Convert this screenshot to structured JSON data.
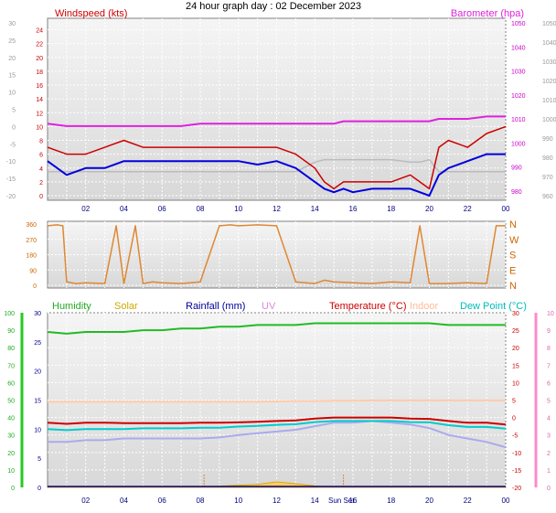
{
  "title": "24 hour graph day : 02 December 2023",
  "xticks": [
    "02",
    "04",
    "06",
    "08",
    "10",
    "12",
    "14",
    "16",
    "18",
    "20",
    "22",
    "00"
  ],
  "sunset_label": "Sun Set",
  "colors": {
    "wind": "#cc0000",
    "windAvg": "#0000dd",
    "baro": "#dd22dd",
    "indoorBaro": "#bbbbbb",
    "dir": "#dd8833",
    "humidity": "#22bb22",
    "solar": "#ddaa00",
    "rain": "#000099",
    "uv": "#dd88dd",
    "temp": "#cc0000",
    "indoor": "#ffccaa",
    "dew": "#00cccc",
    "apparent": "#aaaaee"
  },
  "chart_data": [
    {
      "type": "line",
      "id": "wind-pressure",
      "ylabel": "Windspeed (kts)",
      "y2label": "Barometer (hpa)",
      "ylim": [
        0,
        25
      ],
      "yticks": [
        0,
        2,
        4,
        6,
        8,
        10,
        12,
        14,
        16,
        18,
        20,
        22,
        24
      ],
      "yticks_gray": [
        -20,
        -15,
        -10,
        -5,
        0,
        5,
        10,
        15,
        20,
        25,
        30
      ],
      "y2lim": [
        978,
        1050
      ],
      "y2ticks": [
        980,
        990,
        1000,
        1010,
        1020,
        1030,
        1040,
        1050
      ],
      "y2ticks_minor": [
        960,
        970,
        980,
        990,
        1000,
        1010,
        1020,
        1030,
        1040,
        1050
      ],
      "x_hours": [
        0.0,
        1.0,
        2.0,
        3.0,
        4.0,
        5.0,
        6.0,
        7.0,
        8.0,
        9.0,
        10.0,
        11.0,
        12.0,
        13.0,
        14.0,
        14.5,
        15.0,
        15.5,
        16.0,
        17.0,
        18.0,
        19.0,
        19.5,
        20.0,
        20.5,
        21.0,
        22.0,
        23.0,
        24.0
      ],
      "series": [
        {
          "name": "gust",
          "values": [
            7,
            6,
            6,
            7,
            8,
            7,
            7,
            7,
            7,
            7,
            7,
            7,
            7,
            6,
            4,
            2,
            1,
            2,
            2,
            2,
            2,
            3,
            2,
            1,
            7,
            8,
            7,
            9,
            10
          ]
        },
        {
          "name": "average",
          "values": [
            5,
            3,
            4,
            4,
            5,
            5,
            5,
            5,
            5,
            5,
            5,
            4.5,
            5,
            4,
            2,
            1,
            0.5,
            1,
            0.5,
            1,
            1,
            1,
            0.5,
            0,
            3,
            4,
            5,
            6,
            6
          ]
        },
        {
          "name": "barometer",
          "values": [
            1008,
            1007,
            1007,
            1007,
            1007,
            1007,
            1007,
            1007,
            1008,
            1008,
            1008,
            1008,
            1008,
            1008,
            1008,
            1008,
            1008,
            1009,
            1009,
            1009,
            1009,
            1009,
            1009,
            1009,
            1010,
            1010,
            1010,
            1011,
            1011
          ]
        },
        {
          "name": "indoor",
          "values": [
            988,
            988,
            988,
            988,
            988,
            988,
            988,
            988,
            988,
            988,
            988,
            988,
            988,
            988,
            992,
            993,
            993,
            993,
            993,
            993,
            993,
            992,
            992,
            993,
            988,
            988,
            988,
            988,
            988
          ]
        }
      ]
    },
    {
      "type": "line",
      "id": "wind-direction",
      "ylim": [
        0,
        360
      ],
      "yticks": [
        0,
        90,
        180,
        270,
        360
      ],
      "y2labels": [
        "N",
        "W",
        "S",
        "E",
        "N"
      ],
      "x_hours": [
        0.0,
        0.5,
        0.8,
        1.0,
        1.5,
        2.0,
        3.0,
        3.6,
        4.0,
        4.6,
        5.0,
        5.5,
        6.0,
        7.0,
        8.0,
        9.0,
        9.6,
        10.0,
        11.0,
        12.0,
        13.0,
        14.0,
        14.5,
        15.0,
        16.0,
        17.0,
        18.0,
        19.0,
        19.5,
        20.0,
        21.0,
        22.0,
        23.0,
        23.5,
        24.0
      ],
      "series": [
        {
          "name": "direction",
          "values": [
            350,
            355,
            350,
            20,
            10,
            15,
            10,
            350,
            10,
            350,
            10,
            20,
            15,
            10,
            20,
            350,
            355,
            350,
            355,
            350,
            20,
            10,
            30,
            20,
            15,
            10,
            20,
            15,
            350,
            10,
            10,
            15,
            10,
            350,
            350
          ]
        }
      ]
    },
    {
      "type": "line",
      "id": "temperature-humidity",
      "legend": [
        "Humidity",
        "Solar",
        "Rainfall (mm)",
        "UV",
        "Temperature (°C)",
        "Indoor",
        "Dew Point (°C)"
      ],
      "yticks_hum": [
        0,
        10,
        20,
        30,
        40,
        50,
        60,
        70,
        80,
        90,
        100
      ],
      "yticks_rain": [
        0,
        5,
        10,
        15,
        20,
        25,
        30
      ],
      "yticks_temp": [
        -20,
        -15,
        -10,
        -5,
        0,
        5,
        10,
        15,
        20,
        25,
        30
      ],
      "yticks_uv": [
        0,
        1,
        2,
        3,
        4,
        5,
        6,
        7,
        8,
        9,
        10
      ],
      "temp_lim": [
        -20,
        30
      ],
      "humidity_lim": [
        0,
        100
      ],
      "x_hours": [
        0.0,
        1.0,
        2.0,
        3.0,
        4.0,
        5.0,
        6.0,
        7.0,
        8.0,
        9.0,
        10.0,
        11.0,
        12.0,
        13.0,
        14.0,
        15.0,
        16.0,
        17.0,
        18.0,
        19.0,
        20.0,
        21.0,
        22.0,
        23.0,
        24.0
      ],
      "series": [
        {
          "name": "Humidity",
          "values": [
            89,
            88,
            89,
            89,
            89,
            90,
            90,
            91,
            91,
            92,
            92,
            93,
            93,
            93,
            94,
            94,
            94,
            94,
            94,
            94,
            94,
            93,
            93,
            93,
            93
          ]
        },
        {
          "name": "Temperature (°C)",
          "values": [
            -1.5,
            -1.8,
            -1.5,
            -1.5,
            -1.6,
            -1.6,
            -1.6,
            -1.6,
            -1.5,
            -1.5,
            -1.4,
            -1.2,
            -1.0,
            -0.8,
            -0.3,
            0.0,
            0.0,
            0.0,
            0.0,
            -0.3,
            -0.4,
            -1.0,
            -1.5,
            -1.5,
            -2.0
          ]
        },
        {
          "name": "Dew Point (°C)",
          "values": [
            -3.3,
            -3.6,
            -3.3,
            -3.3,
            -3.3,
            -3.1,
            -3.1,
            -3.1,
            -2.9,
            -2.9,
            -2.6,
            -2.4,
            -2.1,
            -1.9,
            -1.3,
            -1.0,
            -1.0,
            -1.0,
            -1.0,
            -1.3,
            -1.4,
            -2.2,
            -2.7,
            -2.7,
            -3.2
          ]
        },
        {
          "name": "Apparent",
          "values": [
            -7.0,
            -7.0,
            -6.5,
            -6.5,
            -6.0,
            -6.0,
            -6.0,
            -6.0,
            -6.0,
            -5.7,
            -5.0,
            -4.5,
            -4.0,
            -3.5,
            -2.5,
            -1.5,
            -1.5,
            -1.0,
            -1.5,
            -2.0,
            -3.0,
            -5.0,
            -6.0,
            -7.0,
            -8.5
          ]
        },
        {
          "name": "Indoor",
          "values": [
            4.5,
            4.5,
            4.5,
            4.5,
            4.5,
            4.5,
            4.5,
            4.5,
            4.5,
            4.5,
            4.5,
            4.5,
            4.6,
            4.7,
            4.7,
            4.8,
            4.8,
            4.9,
            4.9,
            4.9,
            4.9,
            4.9,
            4.9,
            4.9,
            4.9
          ]
        },
        {
          "name": "Solar",
          "values": [
            0,
            0,
            0,
            0,
            0,
            0,
            0,
            0,
            0,
            0.3,
            0.6,
            0.8,
            1.5,
            1.0,
            0.4,
            0,
            0,
            0,
            0,
            0,
            0,
            0,
            0,
            0,
            0
          ]
        },
        {
          "name": "Rainfall (mm)",
          "values": [
            0,
            0,
            0,
            0,
            0,
            0,
            0,
            0,
            0,
            0,
            0,
            0,
            0,
            0,
            0,
            0,
            0,
            0,
            0,
            0,
            0,
            0,
            0,
            0,
            0
          ]
        }
      ]
    }
  ]
}
